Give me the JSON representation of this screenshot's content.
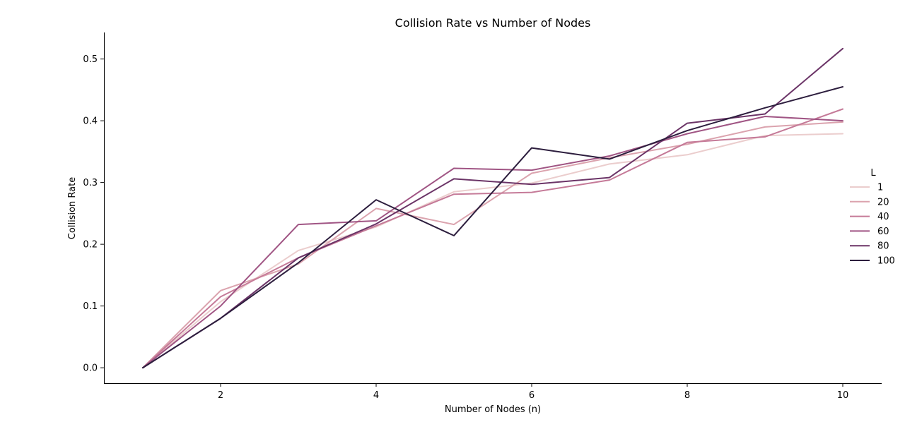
{
  "chart_data": {
    "type": "line",
    "title": "Collision Rate vs Number of Nodes",
    "xlabel": "Number of Nodes (n)",
    "ylabel": "Collision Rate",
    "x": [
      1,
      2,
      3,
      4,
      5,
      6,
      7,
      8,
      9,
      10
    ],
    "xlim": [
      0.5,
      10.5
    ],
    "ylim": [
      -0.025,
      0.543
    ],
    "xticks": [
      "2",
      "4",
      "6",
      "8",
      "10"
    ],
    "yticks": [
      "0.0",
      "0.1",
      "0.2",
      "0.3",
      "0.4",
      "0.5"
    ],
    "grid": false,
    "legend": {
      "title": "L",
      "placement": "center-right"
    },
    "series": [
      {
        "name": "1",
        "color": "#ebcdcd",
        "values": [
          0.0,
          0.107,
          0.19,
          0.228,
          0.285,
          0.299,
          0.33,
          0.345,
          0.376,
          0.379
        ]
      },
      {
        "name": "20",
        "color": "#dba3ae",
        "values": [
          0.0,
          0.125,
          0.168,
          0.258,
          0.232,
          0.315,
          0.34,
          0.362,
          0.39,
          0.398
        ]
      },
      {
        "name": "40",
        "color": "#c57a98",
        "values": [
          0.0,
          0.115,
          0.178,
          0.23,
          0.281,
          0.284,
          0.304,
          0.365,
          0.374,
          0.419
        ]
      },
      {
        "name": "60",
        "color": "#a05584",
        "values": [
          0.0,
          0.1,
          0.232,
          0.238,
          0.323,
          0.32,
          0.343,
          0.379,
          0.407,
          0.4
        ]
      },
      {
        "name": "80",
        "color": "#6b3467",
        "values": [
          0.0,
          0.08,
          0.178,
          0.233,
          0.306,
          0.297,
          0.308,
          0.396,
          0.411,
          0.517
        ]
      },
      {
        "name": "100",
        "color": "#2d1e3e",
        "values": [
          0.0,
          0.08,
          0.17,
          0.272,
          0.214,
          0.356,
          0.338,
          0.384,
          0.421,
          0.455
        ]
      }
    ]
  }
}
